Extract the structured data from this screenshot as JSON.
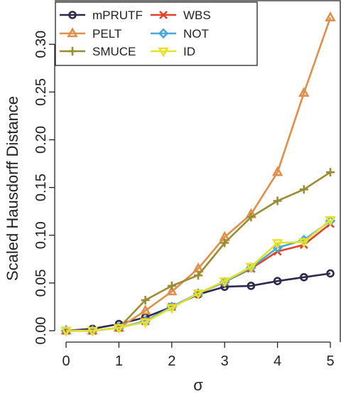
{
  "chart_data": {
    "type": "line",
    "title": "",
    "xlabel": "σ",
    "ylabel": "Scaled Hausdorff Distance",
    "x": [
      0,
      0.5,
      1,
      1.5,
      2,
      2.5,
      3,
      3.5,
      4,
      4.5,
      5
    ],
    "xlim": [
      0,
      5
    ],
    "ylim": [
      0,
      0.33
    ],
    "xticks": [
      0,
      1,
      2,
      3,
      4,
      5
    ],
    "yticks": [
      "0.00",
      "0.05",
      "0.10",
      "0.15",
      "0.20",
      "0.25",
      "0.30"
    ],
    "grid": false,
    "legend_position": "top-left",
    "series": [
      {
        "name": "mPRUTF",
        "color": "#2b2a4c",
        "marker": "circle",
        "values": [
          0.0,
          0.002,
          0.007,
          0.014,
          0.025,
          0.038,
          0.046,
          0.047,
          0.052,
          0.056,
          0.06
        ]
      },
      {
        "name": "PELT",
        "color": "#e08f4a",
        "marker": "triangle-up",
        "values": [
          0.0,
          0.0,
          0.003,
          0.021,
          0.041,
          0.065,
          0.098,
          0.122,
          0.166,
          0.249,
          0.328
        ]
      },
      {
        "name": "SMUCE",
        "color": "#9b8c31",
        "marker": "plus",
        "values": [
          0.0,
          0.0,
          0.003,
          0.032,
          0.047,
          0.058,
          0.092,
          0.119,
          0.136,
          0.148,
          0.166
        ]
      },
      {
        "name": "WBS",
        "color": "#e0432c",
        "marker": "cross",
        "values": [
          0.0,
          0.0,
          0.003,
          0.01,
          0.025,
          0.039,
          0.051,
          0.065,
          0.083,
          0.09,
          0.112
        ]
      },
      {
        "name": "NOT",
        "color": "#48a9d6",
        "marker": "diamond",
        "values": [
          0.0,
          0.0,
          0.003,
          0.01,
          0.025,
          0.039,
          0.051,
          0.066,
          0.087,
          0.095,
          0.115
        ]
      },
      {
        "name": "ID",
        "color": "#e6e22a",
        "marker": "triangle-down",
        "values": [
          0.0,
          0.0,
          0.003,
          0.009,
          0.024,
          0.039,
          0.052,
          0.067,
          0.092,
          0.093,
          0.116
        ]
      }
    ]
  }
}
